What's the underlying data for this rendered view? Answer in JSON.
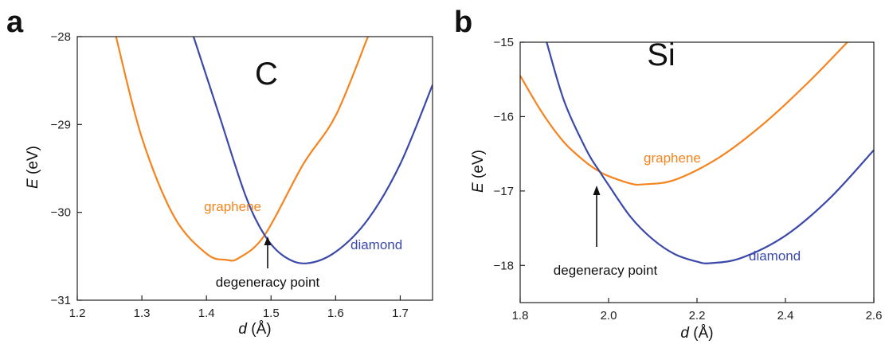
{
  "colors": {
    "graphene": "#f5841f",
    "diamond": "#3b49a8",
    "axis": "#222222",
    "text": "#111111"
  },
  "chart_data": [
    {
      "type": "line",
      "panel_label": "a",
      "element_label": "C",
      "xlabel_var": "d",
      "xlabel_unit": " (Å)",
      "ylabel_var": "E",
      "ylabel_unit": " (eV)",
      "xlim": [
        1.2,
        1.75
      ],
      "ylim": [
        -31,
        -28
      ],
      "x_ticks": [
        1.2,
        1.3,
        1.4,
        1.5,
        1.6,
        1.7
      ],
      "x_tick_labels": [
        "1.2",
        "1.3",
        "1.4",
        "1.5",
        "1.6",
        "1.7"
      ],
      "y_ticks": [
        -28,
        -29,
        -30,
        -31
      ],
      "y_tick_labels": [
        "−28",
        "−29",
        "−30",
        "−31"
      ],
      "series": [
        {
          "name": "graphene",
          "color": "#f5841f",
          "x": [
            1.26,
            1.3,
            1.35,
            1.4,
            1.43,
            1.45,
            1.49,
            1.55,
            1.6,
            1.65
          ],
          "y": [
            -28.0,
            -29.15,
            -30.05,
            -30.47,
            -30.54,
            -30.52,
            -30.26,
            -29.45,
            -28.9,
            -28.0
          ]
        },
        {
          "name": "diamond",
          "color": "#3b49a8",
          "x": [
            1.38,
            1.42,
            1.46,
            1.49,
            1.52,
            1.555,
            1.6,
            1.65,
            1.7,
            1.75
          ],
          "y": [
            -28.0,
            -28.9,
            -29.8,
            -30.26,
            -30.5,
            -30.58,
            -30.45,
            -30.08,
            -29.45,
            -28.55
          ]
        }
      ],
      "annotations": [
        {
          "text": "degeneracy point",
          "x": 1.49,
          "y": -30.26
        }
      ]
    },
    {
      "type": "line",
      "panel_label": "b",
      "element_label": "Si",
      "xlabel_var": "d",
      "xlabel_unit": " (Å)",
      "ylabel_var": "E",
      "ylabel_unit": " (eV)",
      "xlim": [
        1.8,
        2.6
      ],
      "ylim": [
        -18.5,
        -15
      ],
      "x_ticks": [
        1.8,
        2.0,
        2.2,
        2.4,
        2.6
      ],
      "x_tick_labels": [
        "1.8",
        "2.0",
        "2.2",
        "2.4",
        "2.6"
      ],
      "y_ticks": [
        -15,
        -16,
        -17,
        -18
      ],
      "y_tick_labels": [
        "−15",
        "−16",
        "−17",
        "−18"
      ],
      "series": [
        {
          "name": "graphene",
          "color": "#f5841f",
          "x": [
            1.8,
            1.85,
            1.9,
            1.95,
            1.98,
            2.0,
            2.05,
            2.08,
            2.15,
            2.25,
            2.35,
            2.45,
            2.54
          ],
          "y": [
            -15.45,
            -15.95,
            -16.35,
            -16.62,
            -16.74,
            -16.8,
            -16.9,
            -16.91,
            -16.85,
            -16.55,
            -16.1,
            -15.55,
            -15.0
          ]
        },
        {
          "name": "diamond",
          "color": "#3b49a8",
          "x": [
            1.86,
            1.9,
            1.95,
            1.98,
            2.0,
            2.05,
            2.1,
            2.15,
            2.2,
            2.23,
            2.3,
            2.4,
            2.5,
            2.6
          ],
          "y": [
            -15.0,
            -15.8,
            -16.45,
            -16.74,
            -16.92,
            -17.35,
            -17.65,
            -17.85,
            -17.95,
            -17.97,
            -17.9,
            -17.6,
            -17.1,
            -16.45
          ]
        }
      ],
      "annotations": [
        {
          "text": "degeneracy point",
          "x": 1.98,
          "y": -16.74
        }
      ]
    }
  ]
}
